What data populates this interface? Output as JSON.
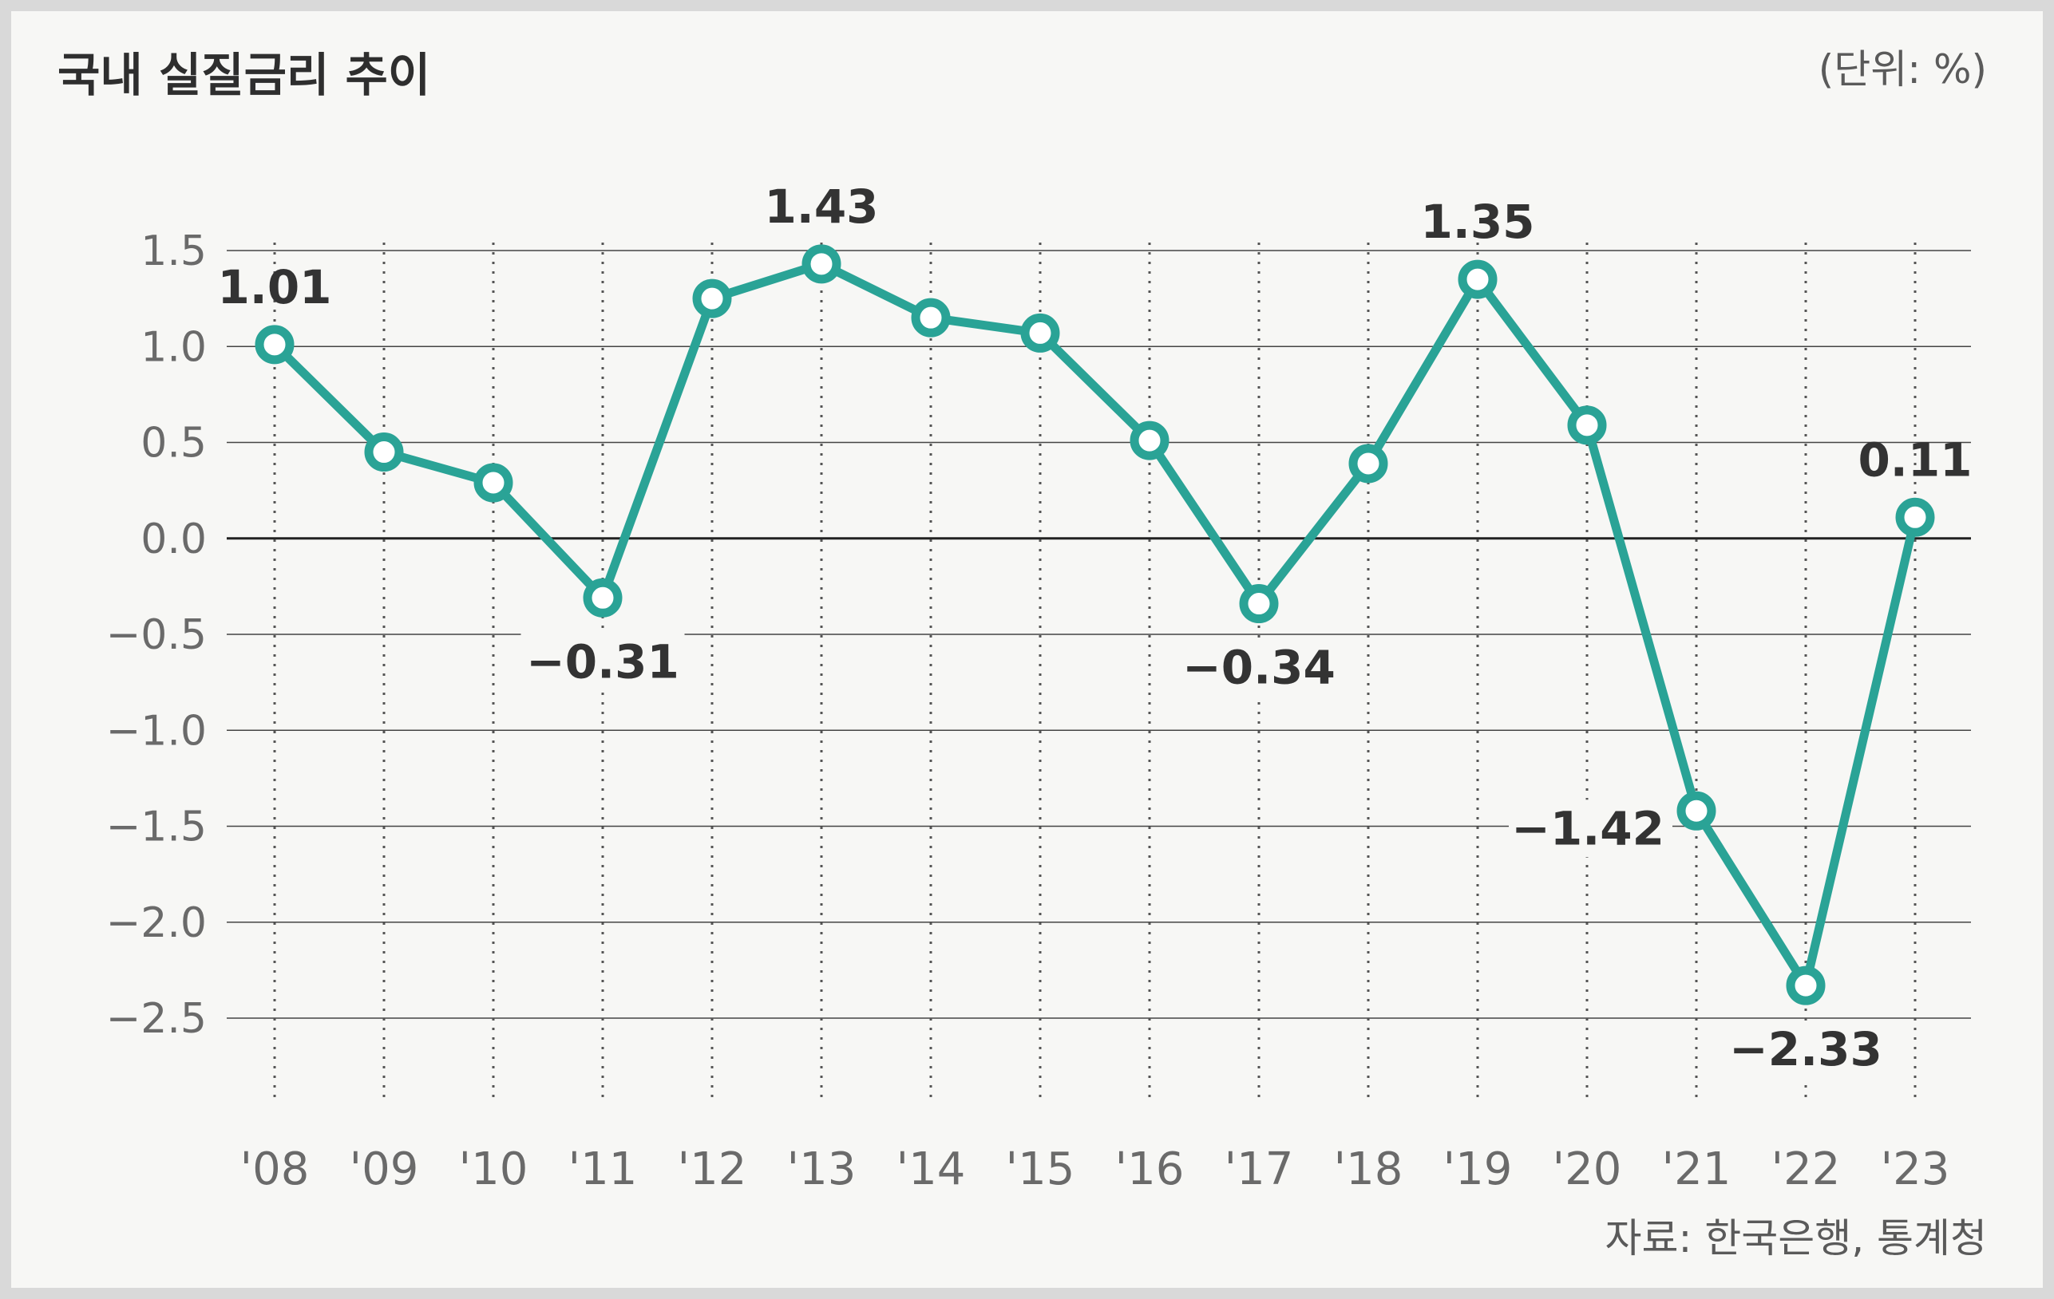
{
  "chart_data": {
    "type": "line",
    "title": "국내 실질금리 추이",
    "unit_label": "(단위: %)",
    "source": "자료: 한국은행, 통계청",
    "categories": [
      "'08",
      "'09",
      "'10",
      "'11",
      "'12",
      "'13",
      "'14",
      "'15",
      "'16",
      "'17",
      "'18",
      "'19",
      "'20",
      "'21",
      "'22",
      "'23"
    ],
    "series": [
      {
        "values": [
          1.01,
          0.45,
          0.29,
          -0.31,
          1.25,
          1.43,
          1.15,
          1.07,
          0.51,
          -0.34,
          0.39,
          1.35,
          0.59,
          -1.42,
          -2.33,
          0.11
        ]
      }
    ],
    "data_labels": [
      {
        "index": 0,
        "text": "1.01"
      },
      {
        "index": 3,
        "text": "−0.31"
      },
      {
        "index": 5,
        "text": "1.43"
      },
      {
        "index": 9,
        "text": "−0.34"
      },
      {
        "index": 11,
        "text": "1.35"
      },
      {
        "index": 13,
        "text": "−1.42"
      },
      {
        "index": 14,
        "text": "−2.33"
      },
      {
        "index": 15,
        "text": "0.11"
      }
    ],
    "yticks": [
      1.5,
      1.0,
      0.5,
      0.0,
      -0.5,
      -1.0,
      -1.5,
      -2.0,
      -2.5
    ],
    "ytick_labels": [
      "1.5",
      "1.0",
      "0.5",
      "0.0",
      "−0.5",
      "−1.0",
      "−1.5",
      "−2.0",
      "−2.5"
    ],
    "ylim": [
      -2.5,
      1.5
    ],
    "grid": true,
    "line_color": "#2aa396"
  }
}
